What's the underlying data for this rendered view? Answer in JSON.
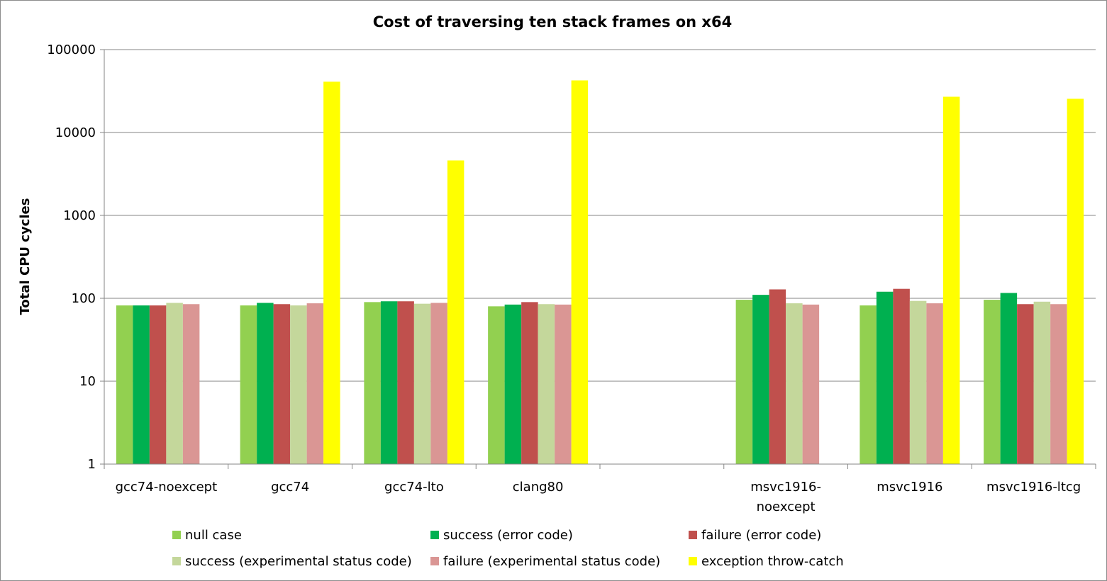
{
  "chart_data": {
    "type": "bar",
    "title": "Cost of traversing ten stack frames on x64",
    "xlabel": "",
    "ylabel": "Total CPU cycles",
    "yscale": "log",
    "ylim": [
      1,
      100000
    ],
    "yticks": [
      "1",
      "10",
      "100",
      "1000",
      "10000",
      "100000"
    ],
    "grid": "horizontal",
    "legend_position": "bottom",
    "categories": [
      [
        "gcc74-noexcept"
      ],
      [
        "gcc74"
      ],
      [
        "gcc74-lto"
      ],
      [
        "clang80"
      ],
      [
        ""
      ],
      [
        "msvc1916-",
        "noexcept"
      ],
      [
        "msvc1916"
      ],
      [
        "msvc1916-ltcg"
      ]
    ],
    "series": [
      {
        "name": "null case",
        "color": "#92D050",
        "values": [
          82,
          82,
          90,
          80,
          null,
          96,
          82,
          96
        ]
      },
      {
        "name": "success (error code)",
        "color": "#00B050",
        "values": [
          82,
          88,
          92,
          84,
          null,
          110,
          120,
          116
        ]
      },
      {
        "name": "failure (error code)",
        "color": "#C0504D",
        "values": [
          82,
          85,
          92,
          90,
          null,
          128,
          130,
          85
        ]
      },
      {
        "name": "success (experimental status code)",
        "color": "#C4D79B",
        "values": [
          88,
          82,
          86,
          85,
          null,
          87,
          93,
          91
        ]
      },
      {
        "name": "failure (experimental status code)",
        "color": "#DA9694",
        "values": [
          85,
          87,
          88,
          84,
          null,
          84,
          87,
          85
        ]
      },
      {
        "name": "exception throw-catch",
        "color": "#FFFF00",
        "values": [
          null,
          41000,
          4600,
          42500,
          null,
          null,
          27000,
          25500
        ]
      }
    ]
  }
}
